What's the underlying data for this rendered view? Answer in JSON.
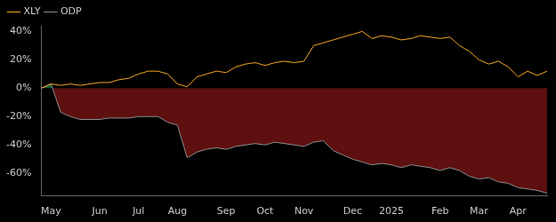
{
  "chart_data": {
    "type": "line",
    "categories": [
      null,
      "May",
      null,
      null,
      null,
      null,
      "Jun",
      null,
      null,
      null,
      "Jul",
      null,
      null,
      null,
      "Aug",
      null,
      null,
      null,
      null,
      "Sep",
      null,
      null,
      null,
      "Oct",
      null,
      null,
      null,
      "Nov",
      null,
      null,
      null,
      null,
      "Dec",
      null,
      null,
      null,
      "2025",
      null,
      null,
      null,
      null,
      "Feb",
      null,
      null,
      null,
      "Mar",
      null,
      null,
      null,
      "Apr",
      null,
      null,
      null
    ],
    "series": [
      {
        "name": "ODP",
        "color": "#8c8c8c",
        "values": [
          0,
          3,
          -17,
          -20,
          -22,
          -22,
          -22,
          -21,
          -21,
          -21,
          -20,
          -20,
          -20,
          -24,
          -26,
          -49,
          -45,
          -43,
          -42,
          -43,
          -41,
          -40,
          -39,
          -40,
          -38,
          -39,
          -40,
          -41,
          -38,
          -37,
          -44,
          -47,
          -50,
          -52,
          -54,
          -53,
          -54,
          -56,
          -54,
          -55,
          -56,
          -58,
          -56,
          -58,
          -62,
          -64,
          -63,
          -66,
          -67,
          -70,
          -71,
          -72,
          -74
        ]
      },
      {
        "name": "XLY",
        "color": "#f5a623",
        "values": [
          0,
          3,
          2,
          3,
          2,
          3,
          4,
          4,
          6,
          7,
          10,
          12,
          12,
          10,
          3,
          1,
          8,
          10,
          12,
          11,
          15,
          17,
          18,
          16,
          18,
          19,
          18,
          19,
          30,
          32,
          34,
          36,
          38,
          40,
          35,
          37,
          36,
          34,
          35,
          37,
          36,
          35,
          36,
          30,
          26,
          20,
          17,
          19,
          15,
          8,
          12,
          9,
          12
        ]
      }
    ],
    "ylim": [
      -76,
      44
    ],
    "yticks": [
      {
        "value": -60,
        "label": "-60%"
      },
      {
        "value": -40,
        "label": "-40%"
      },
      {
        "value": -20,
        "label": "-20%"
      },
      {
        "value": 0,
        "label": "0%"
      },
      {
        "value": 20,
        "label": "20%"
      },
      {
        "value": 40,
        "label": "40%"
      }
    ],
    "grid": false,
    "legend": "upper left"
  }
}
